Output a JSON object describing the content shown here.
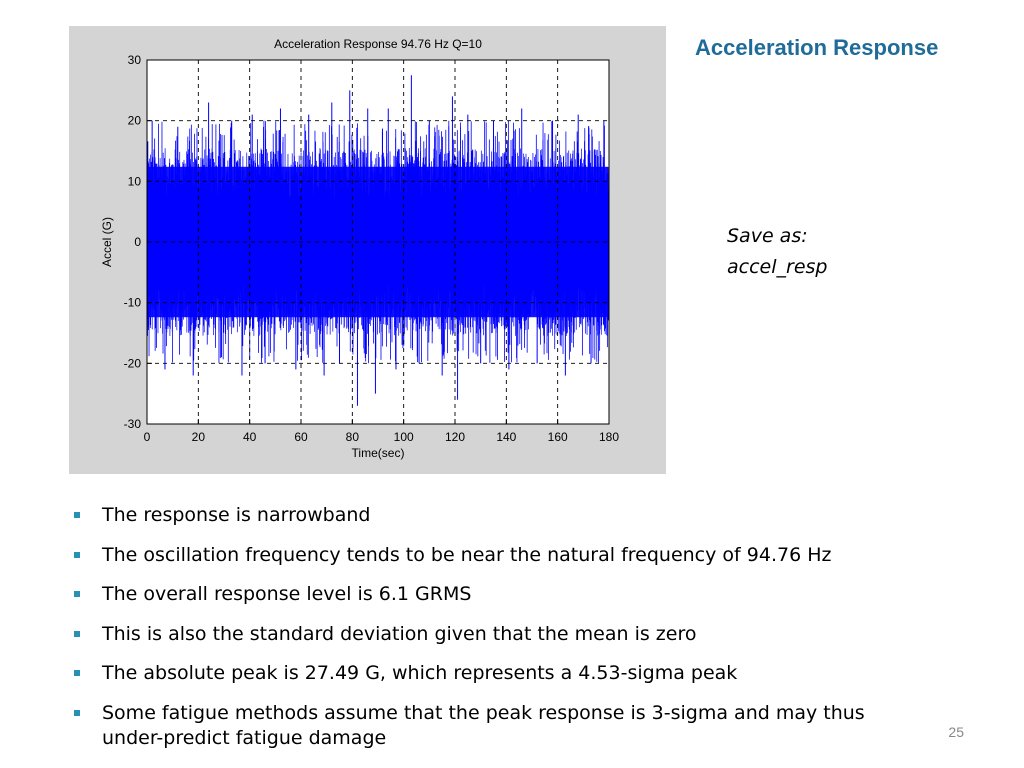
{
  "slide": {
    "title": "Acceleration Response",
    "save_note_line1": "Save as:",
    "save_note_line2": "accel_resp",
    "bullets": [
      "The response is narrowband",
      "The oscillation frequency tends to be near the natural frequency of 94.76 Hz",
      "The overall response level is 6.1 GRMS",
      "This is also the standard deviation given that the mean is zero",
      "The absolute peak is 27.49 G, which represents a 4.53-sigma peak",
      "Some fatigue methods assume that the peak response is 3-sigma and may thus under-predict fatigue damage"
    ],
    "page_number": "25"
  },
  "chart_data": {
    "type": "line",
    "title": "Acceleration Response 94.76 Hz  Q=10",
    "xlabel": "Time(sec)",
    "ylabel": "Accel (G)",
    "xlim": [
      0,
      180
    ],
    "ylim": [
      -30,
      30
    ],
    "xticks": [
      0,
      20,
      40,
      60,
      80,
      100,
      120,
      140,
      160,
      180
    ],
    "yticks": [
      30,
      20,
      10,
      0,
      -10,
      -20,
      -30
    ],
    "grid": true,
    "line_color": "#0000ff",
    "panel_color": "#d4d4d4",
    "typical_envelope": 15.5,
    "series": [
      {
        "values": [
          {
            "x": 2,
            "y": 20
          },
          {
            "x": 7,
            "y": -21
          },
          {
            "x": 12,
            "y": 19
          },
          {
            "x": 18,
            "y": -22
          },
          {
            "x": 24,
            "y": 23
          },
          {
            "x": 29,
            "y": -19
          },
          {
            "x": 33,
            "y": 20
          },
          {
            "x": 37,
            "y": -22
          },
          {
            "x": 41,
            "y": 21
          },
          {
            "x": 46,
            "y": -20
          },
          {
            "x": 52,
            "y": 22
          },
          {
            "x": 58,
            "y": -21
          },
          {
            "x": 63,
            "y": 21
          },
          {
            "x": 69,
            "y": -22
          },
          {
            "x": 72,
            "y": 23
          },
          {
            "x": 75,
            "y": -20
          },
          {
            "x": 79,
            "y": 25
          },
          {
            "x": 82,
            "y": -27
          },
          {
            "x": 86,
            "y": 22
          },
          {
            "x": 89,
            "y": -25
          },
          {
            "x": 94,
            "y": 22
          },
          {
            "x": 97,
            "y": -21
          },
          {
            "x": 103,
            "y": 27.49
          },
          {
            "x": 106,
            "y": -20
          },
          {
            "x": 110,
            "y": 20
          },
          {
            "x": 115,
            "y": -22
          },
          {
            "x": 119,
            "y": 24
          },
          {
            "x": 121,
            "y": -26
          },
          {
            "x": 125,
            "y": 21
          },
          {
            "x": 130,
            "y": -20
          },
          {
            "x": 135,
            "y": 20
          },
          {
            "x": 141,
            "y": -21
          },
          {
            "x": 146,
            "y": 22
          },
          {
            "x": 152,
            "y": -20
          },
          {
            "x": 158,
            "y": 20
          },
          {
            "x": 163,
            "y": -22
          },
          {
            "x": 168,
            "y": 21
          },
          {
            "x": 173,
            "y": -20
          },
          {
            "x": 178,
            "y": 20
          }
        ]
      }
    ]
  }
}
